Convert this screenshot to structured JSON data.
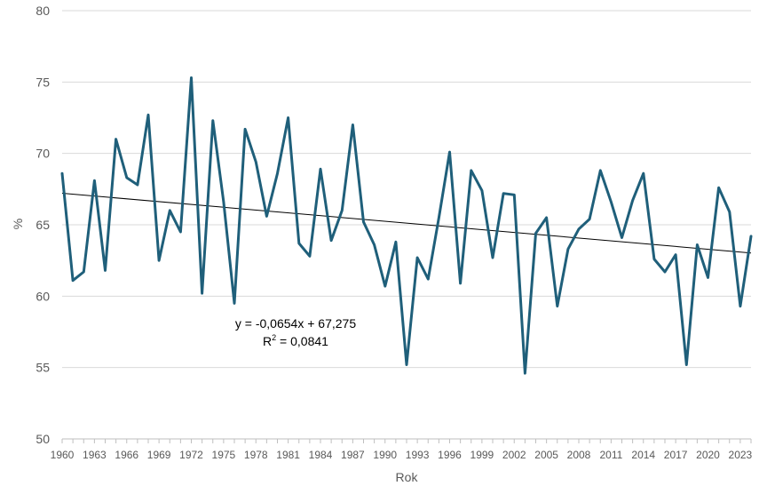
{
  "chart_data": {
    "type": "line",
    "title": "",
    "xlabel": "Rok",
    "ylabel": "%",
    "ylim": [
      50,
      80
    ],
    "yticks": [
      50,
      55,
      60,
      65,
      70,
      75,
      80
    ],
    "xlim": [
      1960,
      2024
    ],
    "xtick_labels": [
      "1960",
      "1963",
      "1966",
      "1969",
      "1972",
      "1975",
      "1978",
      "1981",
      "1984",
      "1987",
      "1990",
      "1993",
      "1996",
      "1999",
      "2002",
      "2005",
      "2008",
      "2011",
      "2014",
      "2017",
      "2020",
      "2023"
    ],
    "grid": "horizontal",
    "legend": "none",
    "x": [
      1960,
      1961,
      1962,
      1963,
      1964,
      1965,
      1966,
      1967,
      1968,
      1969,
      1970,
      1971,
      1972,
      1973,
      1974,
      1975,
      1976,
      1977,
      1978,
      1979,
      1980,
      1981,
      1982,
      1983,
      1984,
      1985,
      1986,
      1987,
      1988,
      1989,
      1990,
      1991,
      1992,
      1993,
      1994,
      1995,
      1996,
      1997,
      1998,
      1999,
      2000,
      2001,
      2002,
      2003,
      2004,
      2005,
      2006,
      2007,
      2008,
      2009,
      2010,
      2011,
      2012,
      2013,
      2014,
      2015,
      2016,
      2017,
      2018,
      2019,
      2020,
      2021,
      2022,
      2023,
      2024
    ],
    "series": [
      {
        "values": [
          68.6,
          61.1,
          61.7,
          68.1,
          61.8,
          71.0,
          68.3,
          67.8,
          72.7,
          62.5,
          66.0,
          64.5,
          75.3,
          60.2,
          72.3,
          66.6,
          59.5,
          71.7,
          69.4,
          65.6,
          68.6,
          72.5,
          63.7,
          62.8,
          68.9,
          63.9,
          66.0,
          72.0,
          65.2,
          63.6,
          60.7,
          63.8,
          55.2,
          62.7,
          61.2,
          65.5,
          70.1,
          60.9,
          68.8,
          67.4,
          62.7,
          67.2,
          67.1,
          54.6,
          64.4,
          65.5,
          59.3,
          63.3,
          64.7,
          65.4,
          68.8,
          66.6,
          64.1,
          66.7,
          68.6,
          62.6,
          61.7,
          62.9,
          55.2,
          63.6,
          61.3,
          67.6,
          65.9,
          59.3,
          64.2
        ],
        "color": "#1f5f7a"
      }
    ],
    "trendline": {
      "equation": "y = -0,0654x + 67,275",
      "r2_prefix": "R",
      "r2_sup": "2",
      "r2_value": " = 0,0841",
      "slope_per_index": -0.0654,
      "intercept": 67.275,
      "color": "#000000"
    }
  }
}
